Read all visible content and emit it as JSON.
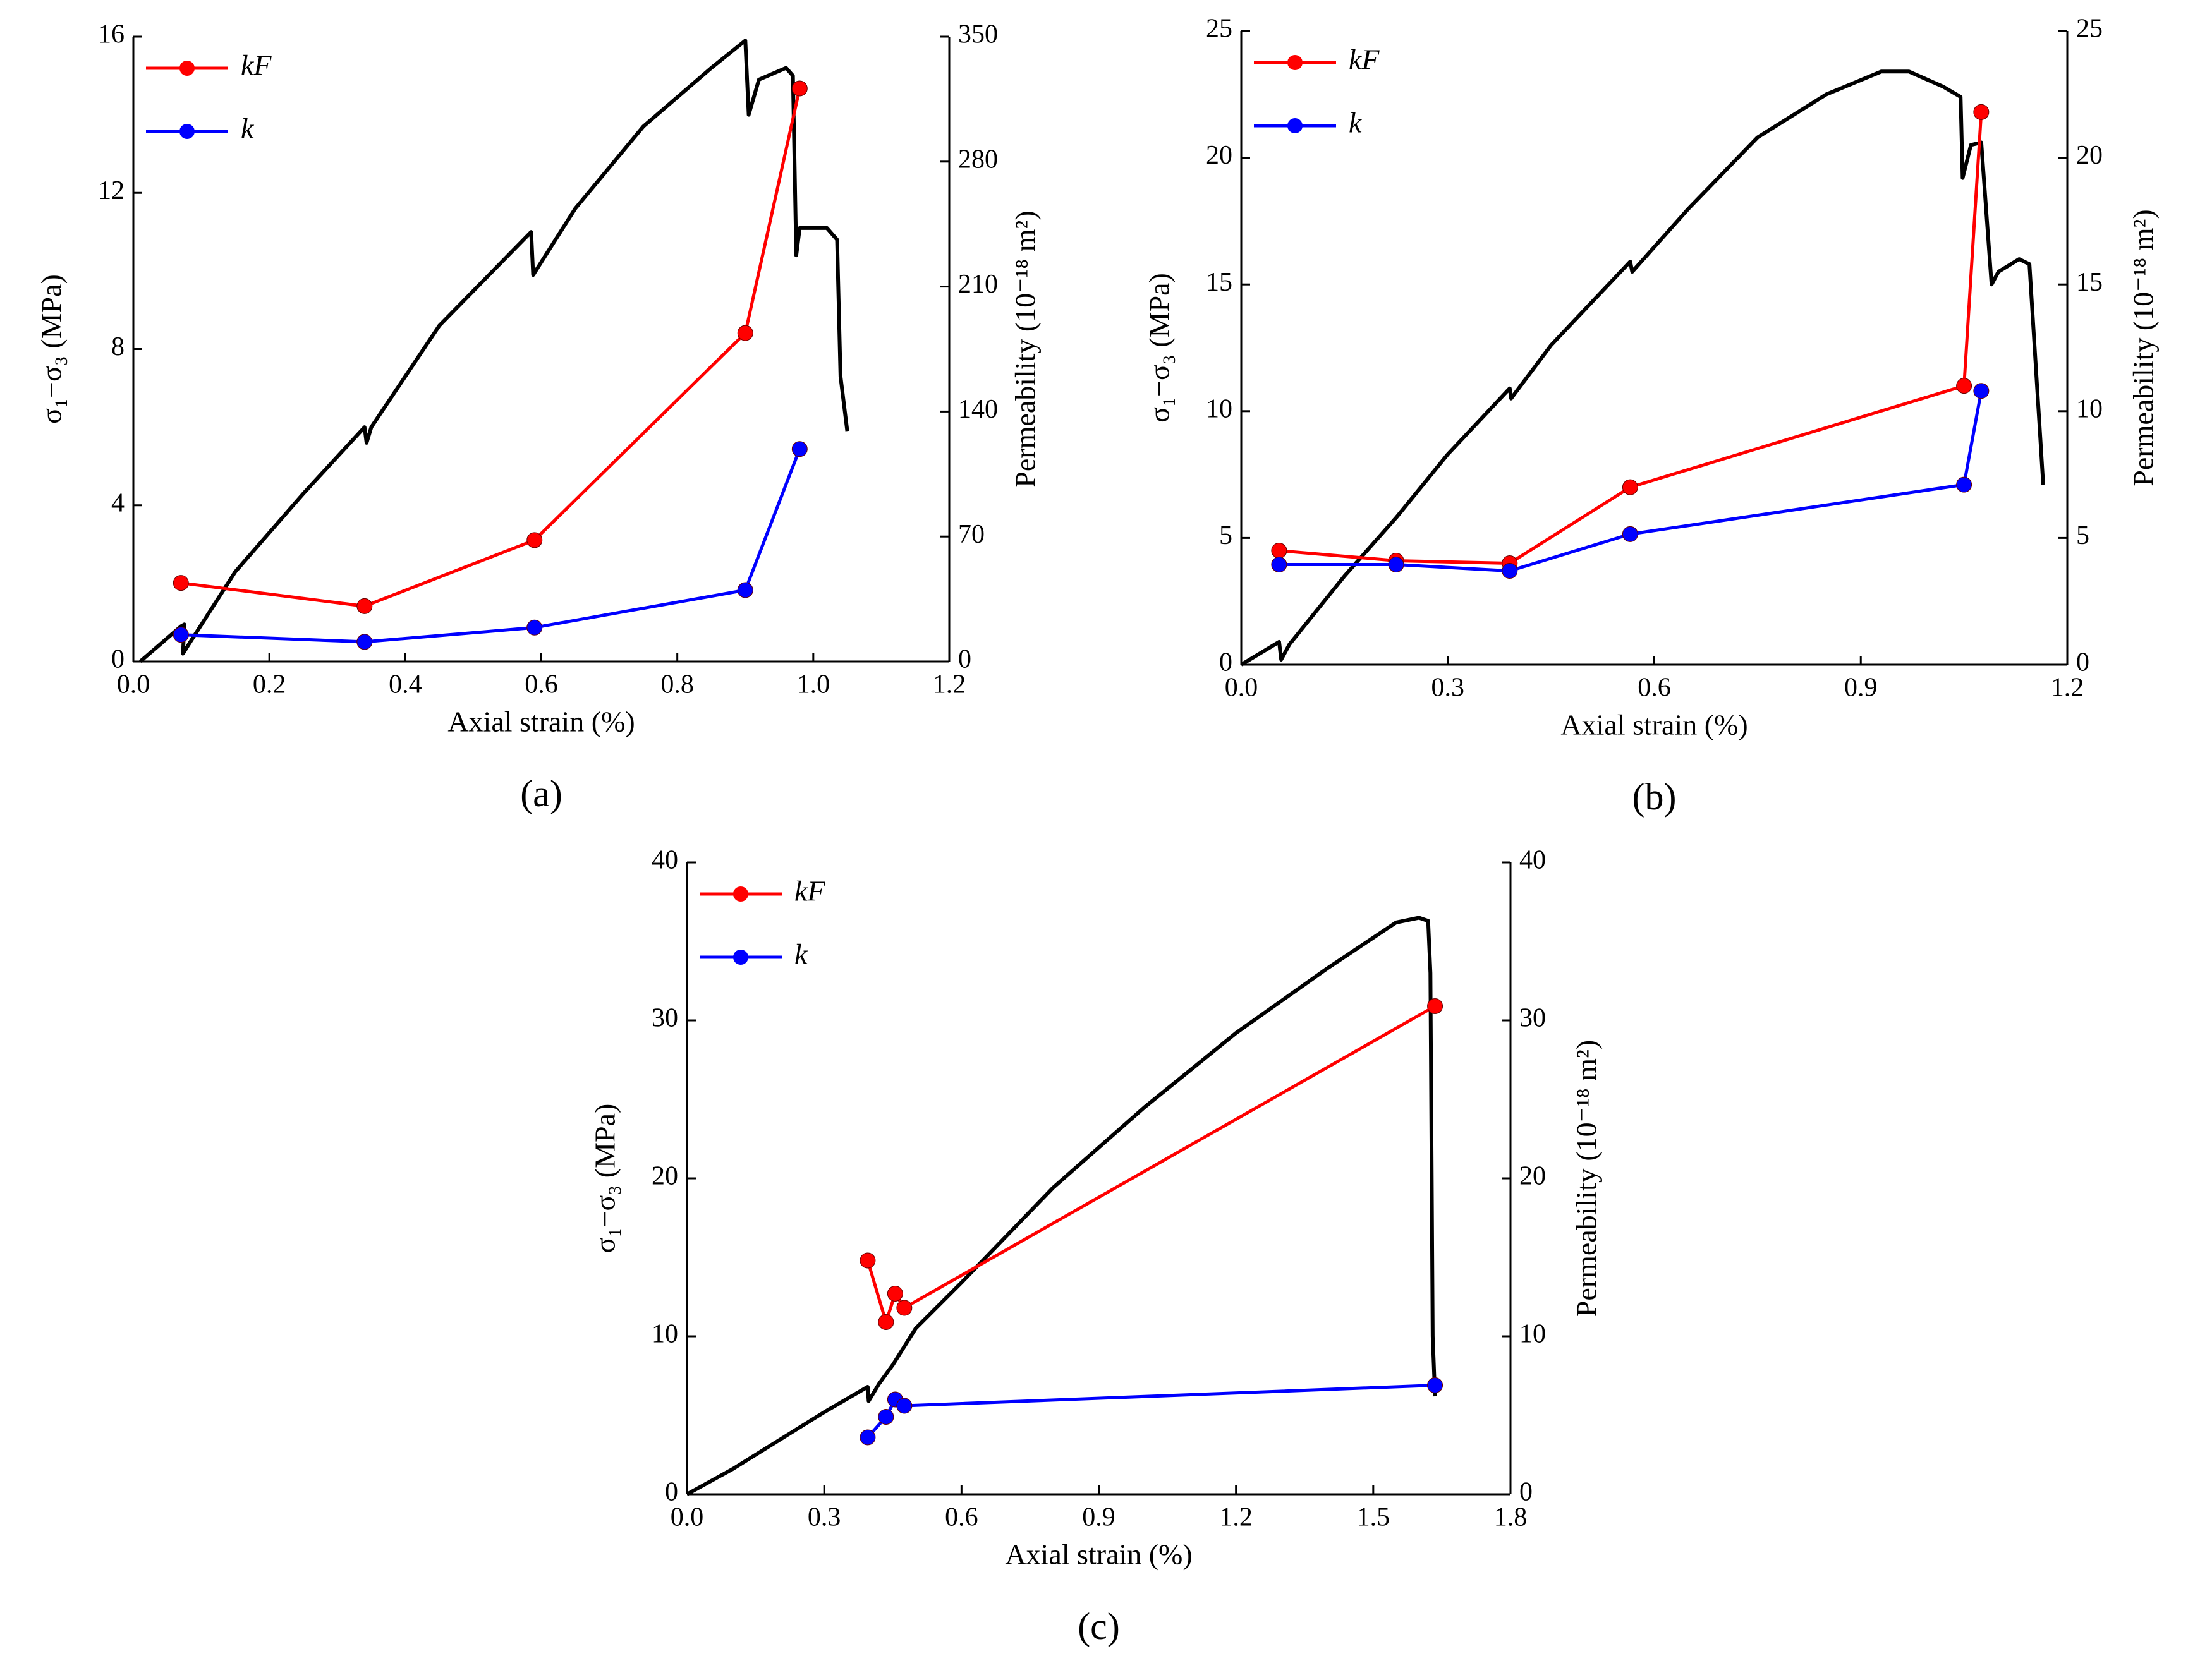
{
  "chart_data": [
    {
      "type": "line",
      "label": "(a)",
      "xlabel": "Axial strain (%)",
      "ylabel": "σ₁−σ₃ (MPa)",
      "y2label": "Permeability (10⁻¹⁸ m²)",
      "xlim": [
        0,
        1.2
      ],
      "xticks": [
        {
          "value": 0,
          "label": "0.0"
        },
        0.2,
        0.4,
        0.6,
        0.8,
        {
          "value": 1,
          "label": "1.0"
        },
        1.2
      ],
      "ylim": [
        0,
        16
      ],
      "yticks": [
        0,
        4,
        8,
        12,
        16
      ],
      "y2lim": [
        0,
        350
      ],
      "y2ticks": [
        0,
        70,
        140,
        210,
        280,
        350
      ],
      "legend": "upper left",
      "series": [
        {
          "color": "#000000",
          "marker": false,
          "x": [
            0.01,
            0.07,
            0.075,
            0.073,
            0.08,
            0.15,
            0.25,
            0.34,
            0.343,
            0.35,
            0.45,
            0.585,
            0.588,
            0.65,
            0.75,
            0.85,
            0.9,
            0.905,
            0.92,
            0.96,
            0.97,
            0.975,
            0.98,
            1.02,
            1.035,
            1.04,
            1.05
          ],
          "values": [
            0,
            0.9,
            0.95,
            0.2,
            0.4,
            2.3,
            4.3,
            6.0,
            5.6,
            6.0,
            8.6,
            11.0,
            9.9,
            11.6,
            13.7,
            15.2,
            15.9,
            14.0,
            14.9,
            15.2,
            15.0,
            10.4,
            11.1,
            11.1,
            10.8,
            7.3,
            5.9
          ]
        },
        {
          "name": "kF",
          "color": "#ff0000",
          "marker": true,
          "axis": "y2",
          "x": [
            0.07,
            0.34,
            0.59,
            0.9,
            0.98
          ],
          "values": [
            44,
            31,
            68,
            184,
            321
          ]
        },
        {
          "name": "k",
          "color": "#0000ff",
          "marker": true,
          "axis": "y2",
          "x": [
            0.07,
            0.34,
            0.59,
            0.9,
            0.98
          ],
          "values": [
            15,
            11,
            19,
            40,
            119
          ]
        }
      ]
    },
    {
      "type": "line",
      "label": "(b)",
      "xlabel": "Axial strain (%)",
      "ylabel": "σ₁−σ₃ (MPa)",
      "y2label": "Permeability (10⁻¹⁸ m²)",
      "xlim": [
        0,
        1.2
      ],
      "xticks": [
        {
          "value": 0,
          "label": "0.0"
        },
        0.3,
        0.6,
        0.9,
        1.2
      ],
      "ylim": [
        0,
        25
      ],
      "yticks": [
        0,
        5,
        10,
        15,
        20,
        25
      ],
      "y2lim": [
        0,
        25
      ],
      "y2ticks": [
        0,
        5,
        10,
        15,
        20,
        25
      ],
      "legend": "upper left",
      "series": [
        {
          "color": "#000000",
          "marker": false,
          "x": [
            0,
            0.055,
            0.058,
            0.07,
            0.15,
            0.225,
            0.3,
            0.39,
            0.392,
            0.45,
            0.565,
            0.568,
            0.65,
            0.75,
            0.85,
            0.93,
            0.97,
            1.02,
            1.045,
            1.048,
            1.06,
            1.075,
            1.09,
            1.1,
            1.13,
            1.145,
            1.165
          ],
          "values": [
            0,
            0.9,
            0.2,
            0.8,
            3.5,
            5.8,
            8.3,
            10.9,
            10.5,
            12.6,
            15.9,
            15.5,
            18.0,
            20.8,
            22.5,
            23.4,
            23.4,
            22.8,
            22.4,
            19.2,
            20.5,
            20.6,
            15.0,
            15.5,
            16.0,
            15.8,
            7.1
          ]
        },
        {
          "name": "kF",
          "color": "#ff0000",
          "marker": true,
          "axis": "y2",
          "x": [
            0.055,
            0.225,
            0.39,
            0.565,
            1.05,
            1.075
          ],
          "values": [
            4.5,
            4.1,
            4.0,
            7.0,
            11.0,
            21.8
          ]
        },
        {
          "name": "k",
          "color": "#0000ff",
          "marker": true,
          "axis": "y2",
          "x": [
            0.055,
            0.225,
            0.39,
            0.565,
            1.05,
            1.075
          ],
          "values": [
            3.95,
            3.95,
            3.7,
            5.15,
            7.1,
            10.8
          ]
        }
      ]
    },
    {
      "type": "line",
      "label": "(c)",
      "xlabel": "Axial strain (%)",
      "ylabel": "σ₁−σ₃ (MPa)",
      "y2label": "Permeability (10⁻¹⁸ m²)",
      "xlim": [
        0,
        1.8
      ],
      "xticks": [
        {
          "value": 0,
          "label": "0.0"
        },
        0.3,
        0.6,
        0.9,
        1.2,
        1.5,
        1.8
      ],
      "ylim": [
        0,
        40
      ],
      "yticks": [
        0,
        10,
        20,
        30,
        40
      ],
      "y2lim": [
        0,
        40
      ],
      "y2ticks": [
        0,
        10,
        20,
        30,
        40
      ],
      "legend": "upper left",
      "series": [
        {
          "color": "#000000",
          "marker": false,
          "x": [
            0,
            0.1,
            0.2,
            0.3,
            0.395,
            0.397,
            0.42,
            0.45,
            0.5,
            0.6,
            0.8,
            1.0,
            1.2,
            1.4,
            1.55,
            1.6,
            1.62,
            1.625,
            1.63,
            1.635
          ],
          "values": [
            0,
            1.6,
            3.4,
            5.2,
            6.8,
            5.9,
            7.0,
            8.2,
            10.5,
            13.4,
            19.4,
            24.5,
            29.2,
            33.3,
            36.2,
            36.5,
            36.3,
            33,
            10,
            6.2
          ]
        },
        {
          "name": "kF",
          "color": "#ff0000",
          "marker": true,
          "axis": "y2",
          "x": [
            0.395,
            0.435,
            0.455,
            0.475,
            1.635
          ],
          "values": [
            14.8,
            10.9,
            12.7,
            11.8,
            30.9
          ]
        },
        {
          "name": "k",
          "color": "#0000ff",
          "marker": true,
          "axis": "y2",
          "x": [
            0.395,
            0.435,
            0.455,
            0.475,
            1.635
          ],
          "values": [
            3.6,
            4.9,
            6.0,
            5.6,
            6.9
          ]
        }
      ]
    }
  ]
}
